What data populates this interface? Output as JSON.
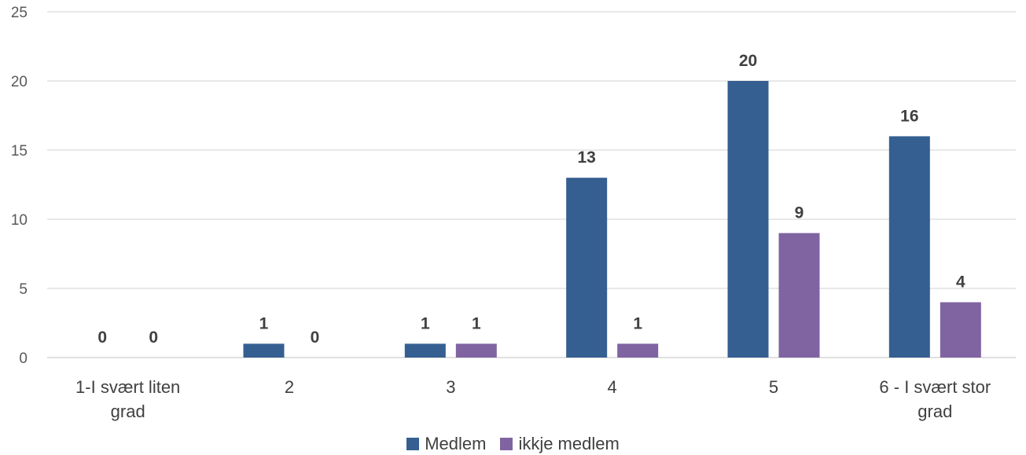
{
  "chart_data": {
    "type": "bar",
    "categories": [
      [
        "1-I svært liten",
        "grad"
      ],
      [
        "2"
      ],
      [
        "3"
      ],
      [
        "4"
      ],
      [
        "5"
      ],
      [
        "6 - I svært stor",
        "grad"
      ]
    ],
    "series": [
      {
        "name": "Medlem",
        "values": [
          0,
          1,
          1,
          13,
          20,
          16
        ],
        "color": "#355F91"
      },
      {
        "name": "ikkje medlem",
        "values": [
          0,
          0,
          1,
          1,
          9,
          4
        ],
        "color": "#8064A2"
      }
    ],
    "yticks": [
      "0",
      "5",
      "10",
      "15",
      "20",
      "25"
    ],
    "ylim": [
      0,
      25
    ],
    "grid": true,
    "data_labels": true,
    "legend_position": "bottom"
  }
}
